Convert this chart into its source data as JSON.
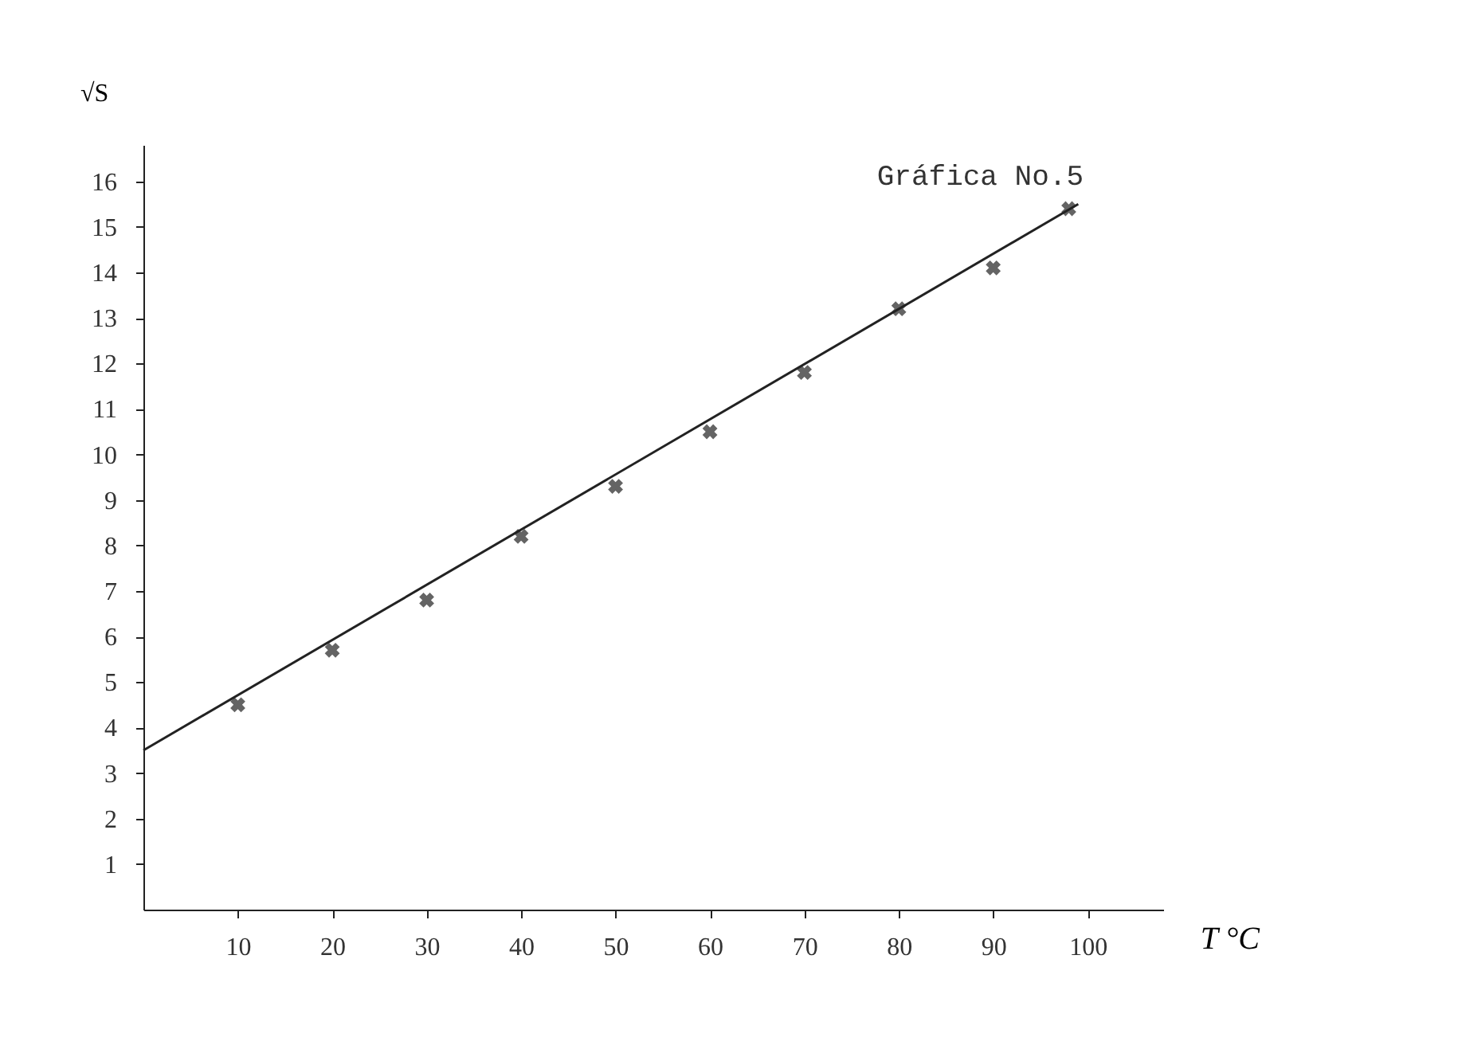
{
  "chart_data": {
    "type": "scatter",
    "title": "Gráfica No.5",
    "xlabel": "T °C",
    "ylabel": "√S",
    "x": [
      10,
      20,
      30,
      40,
      50,
      60,
      70,
      80,
      90,
      98
    ],
    "series": [
      {
        "color": "#222222",
        "marker": "cross",
        "values": [
          4.5,
          5.7,
          6.8,
          8.2,
          9.3,
          10.5,
          11.8,
          13.2,
          14.1,
          15.4
        ]
      },
      {
        "type": "line",
        "color": "#222222",
        "x": [
          0,
          99
        ],
        "values": [
          3.5,
          15.5
        ],
        "line_style": "solid",
        "marker": "none"
      }
    ],
    "xlim": [
      0,
      108
    ],
    "xticks": [
      10,
      20,
      30,
      40,
      50,
      60,
      70,
      80,
      90,
      100
    ],
    "ylim": [
      0,
      16.8
    ],
    "yticks": [
      1,
      2,
      3,
      4,
      5,
      6,
      7,
      8,
      9,
      10,
      11,
      12,
      13,
      14,
      15,
      16
    ],
    "grid": false
  }
}
